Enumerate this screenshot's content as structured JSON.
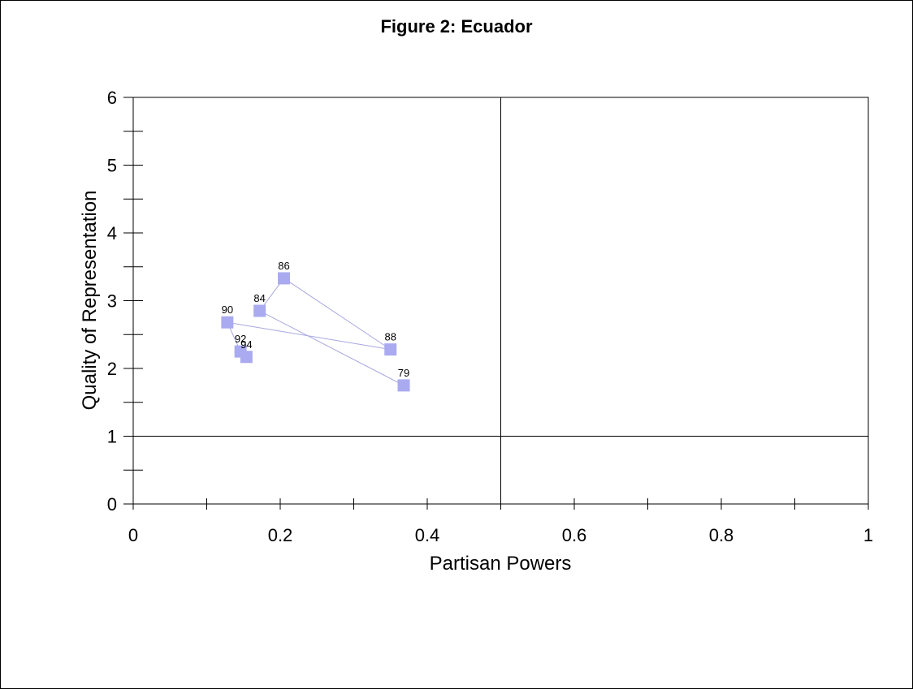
{
  "chart_data": {
    "type": "scatter",
    "title": "Figure 2: Ecuador",
    "xlabel": "Partisan Powers",
    "ylabel": "Quality of Representation",
    "xlim": [
      0,
      1
    ],
    "ylim": [
      0,
      6
    ],
    "x_ticks": [
      0,
      0.1,
      0.2,
      0.3,
      0.4,
      0.5,
      0.6,
      0.7,
      0.8,
      0.9,
      1
    ],
    "x_tick_labels": [
      "0",
      "",
      "0.2",
      "",
      "0.4",
      "",
      "0.6",
      "",
      "0.8",
      "",
      "1"
    ],
    "y_ticks": [
      0,
      0.5,
      1,
      1.5,
      2,
      2.5,
      3,
      3.5,
      4,
      4.5,
      5,
      5.5,
      6
    ],
    "y_tick_labels": [
      "0",
      "",
      "1",
      "",
      "2",
      "",
      "3",
      "",
      "4",
      "",
      "5",
      "",
      "6"
    ],
    "reference_lines": {
      "x": 0.5,
      "y": 1
    },
    "grid": false,
    "marker_color": "#aaaaf0",
    "line_color": "#a8a8e0",
    "points": [
      {
        "label": "79",
        "x": 0.368,
        "y": 1.75
      },
      {
        "label": "84",
        "x": 0.172,
        "y": 2.85
      },
      {
        "label": "86",
        "x": 0.205,
        "y": 3.33
      },
      {
        "label": "88",
        "x": 0.35,
        "y": 2.28
      },
      {
        "label": "90",
        "x": 0.128,
        "y": 2.68
      },
      {
        "label": "92",
        "x": 0.146,
        "y": 2.25
      },
      {
        "label": "94",
        "x": 0.154,
        "y": 2.17
      }
    ]
  }
}
